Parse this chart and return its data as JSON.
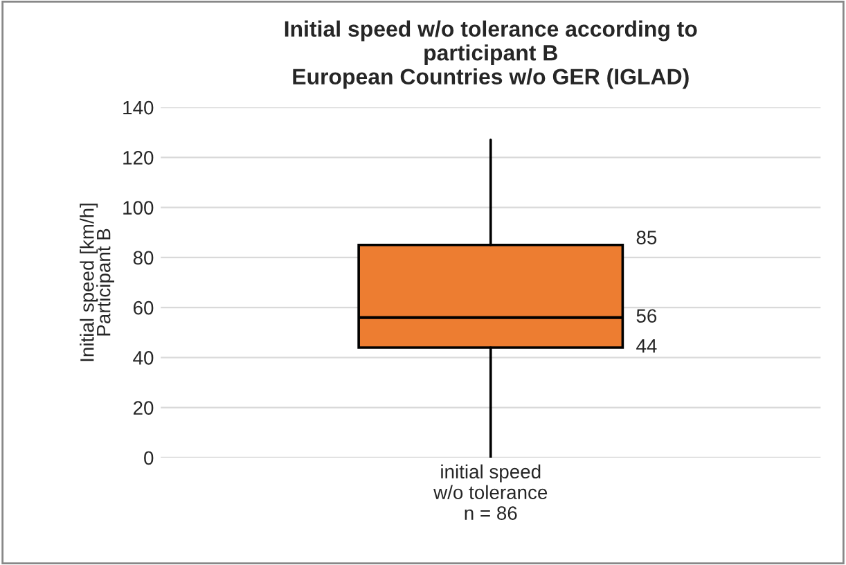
{
  "chart_data": {
    "type": "box",
    "title": "Initial speed w/o tolerance according to\nparticipant B\nEuropean Countries w/o GER (IGLAD)",
    "ylabel": "Initial speed [km/h]\nParticipant B",
    "categories": [
      "initial speed\nw/o tolerance\nn = 86"
    ],
    "boxes": [
      {
        "low": 0,
        "q1": 44,
        "median": 56,
        "q3": 85,
        "high": 127
      }
    ],
    "color": "#ed7d31",
    "ylim": [
      0,
      140
    ],
    "yticks": [
      0,
      20,
      40,
      60,
      80,
      100,
      120,
      140
    ],
    "grid": "y",
    "annotations": [
      "85",
      "56",
      "44"
    ]
  }
}
